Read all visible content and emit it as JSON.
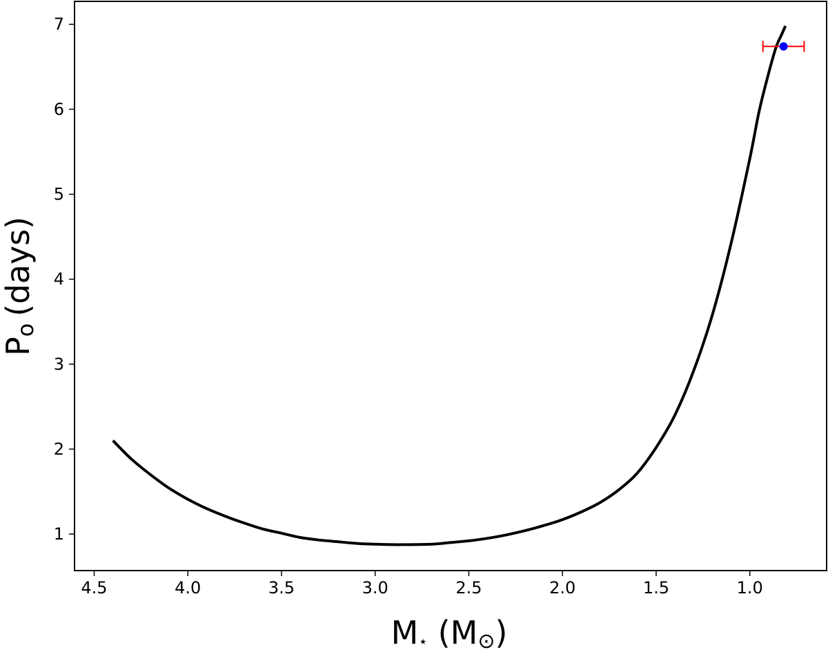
{
  "chart_data": {
    "type": "line",
    "title": "",
    "xlabel": "M⋆ (M⊙)",
    "ylabel": "Po (days)",
    "xlabel_parts": {
      "main": "M",
      "sub": "⋆",
      "unit_main": "M",
      "unit_sub": "⊙"
    },
    "ylabel_parts": {
      "main": "P",
      "sub": "o",
      "unit": "(days)"
    },
    "xlim": [
      4.605,
      0.59
    ],
    "ylim": [
      0.57,
      7.27
    ],
    "x_inverted": true,
    "grid": false,
    "xticks": [
      4.5,
      4.0,
      3.5,
      3.0,
      2.5,
      2.0,
      1.5,
      1.0
    ],
    "xtick_labels": [
      "4.5",
      "4.0",
      "3.5",
      "3.0",
      "2.5",
      "2.0",
      "1.5",
      "1.0"
    ],
    "yticks": [
      1,
      2,
      3,
      4,
      5,
      6,
      7
    ],
    "ytick_labels": [
      "1",
      "2",
      "3",
      "4",
      "5",
      "6",
      "7"
    ],
    "series": [
      {
        "color": "#000000",
        "x": [
          4.4,
          4.3,
          4.2,
          4.1,
          4.0,
          3.9,
          3.8,
          3.7,
          3.6,
          3.5,
          3.4,
          3.3,
          3.2,
          3.1,
          3.0,
          2.9,
          2.85,
          2.7,
          2.6,
          2.5,
          2.4,
          2.3,
          2.2,
          2.1,
          2.0,
          1.9,
          1.8,
          1.7,
          1.6,
          1.5,
          1.4,
          1.3,
          1.2,
          1.1,
          1.0,
          0.95,
          0.9,
          0.86,
          0.83,
          0.81
        ],
        "y": [
          2.1,
          1.88,
          1.7,
          1.54,
          1.41,
          1.3,
          1.21,
          1.13,
          1.06,
          1.01,
          0.96,
          0.93,
          0.91,
          0.89,
          0.88,
          0.875,
          0.875,
          0.88,
          0.9,
          0.92,
          0.95,
          0.99,
          1.04,
          1.1,
          1.17,
          1.26,
          1.37,
          1.52,
          1.72,
          2.02,
          2.4,
          2.92,
          3.58,
          4.42,
          5.42,
          5.98,
          6.42,
          6.73,
          6.88,
          6.98
        ]
      }
    ],
    "errorbar_point": {
      "x": 0.82,
      "y": 6.74,
      "xerr": [
        0.11,
        0.11
      ],
      "marker_color": "#0000ff",
      "errorbar_color": "#ff0000"
    }
  }
}
